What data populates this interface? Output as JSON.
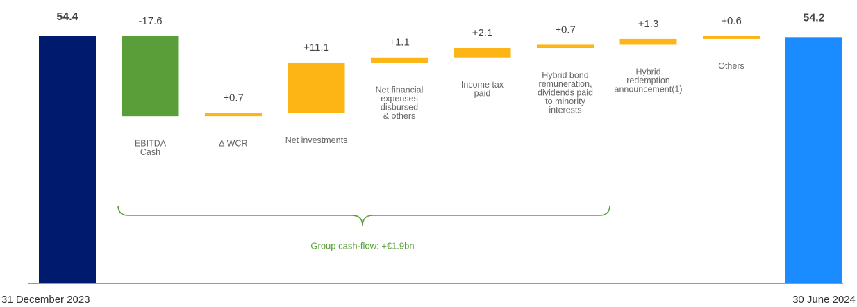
{
  "chart_data": {
    "type": "waterfall",
    "categories": [
      [
        "31 December 2023"
      ],
      [
        "EBITDA",
        "Cash"
      ],
      [
        "∆ WCR"
      ],
      [
        "Net investments"
      ],
      [
        "Net financial",
        "expenses",
        "disbursed",
        "& others"
      ],
      [
        "Income tax",
        "paid"
      ],
      [
        "Hybrid bond",
        "remuneration,",
        "dividends paid",
        "to minority",
        "interests"
      ],
      [
        "Hybrid",
        "redemption",
        "announcement(1)"
      ],
      [
        "Others"
      ],
      [
        "30 June 2024"
      ]
    ],
    "measure": [
      "total",
      "relative",
      "relative",
      "relative",
      "relative",
      "relative",
      "relative",
      "relative",
      "relative",
      "total"
    ],
    "values": [
      54.4,
      -17.6,
      0.7,
      11.1,
      1.1,
      2.1,
      0.7,
      1.3,
      0.6,
      54.2
    ],
    "value_labels": [
      "54.4",
      "-17.6",
      "+0.7",
      "+11.1",
      "+1.1",
      "+2.1",
      "+0.7",
      "+1.3",
      "+0.6",
      "54.2"
    ],
    "colors": [
      "#001a6e",
      "#5a9e3a",
      "#fdb515",
      "#fdb515",
      "#fdb515",
      "#fdb515",
      "#fdb515",
      "#fdb515",
      "#fdb515",
      "#1a8cff"
    ],
    "ylim": [
      0,
      60
    ],
    "annotation": "Group cash-flow: +€1.9bn"
  }
}
